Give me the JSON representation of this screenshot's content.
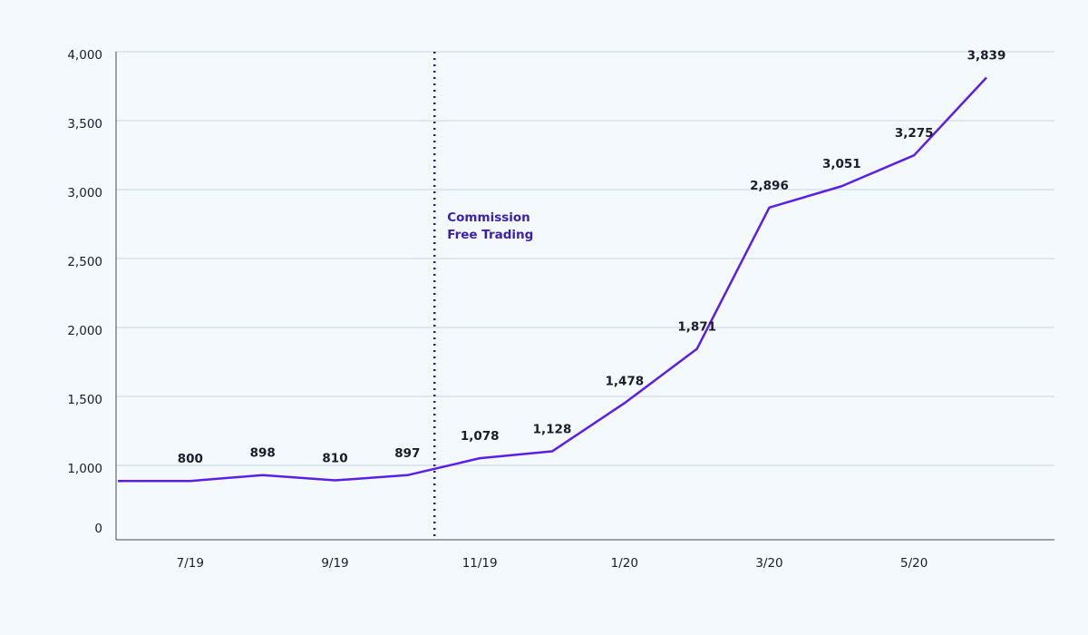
{
  "chart_data": {
    "type": "line",
    "categories": [
      null,
      "7/19",
      null,
      "9/19",
      null,
      "11/19",
      null,
      "1/20",
      null,
      "3/20",
      null,
      "5/20",
      null
    ],
    "values": [
      800,
      800,
      898,
      810,
      897,
      1078,
      1128,
      1478,
      1871,
      2896,
      3051,
      3275,
      3839
    ],
    "value_labels": [
      null,
      "800",
      "898",
      "810",
      "897",
      "1,078",
      "1,128",
      "1,478",
      "1,871",
      "2,896",
      "3,051",
      "3,275",
      "3,839"
    ],
    "color": "#5a1fe8",
    "ylim": [
      0,
      4000
    ],
    "y_break": 1000,
    "yticks": [
      0,
      {
        "value": 1000,
        "label": "1,000"
      },
      {
        "value": 1500,
        "label": "1,500"
      },
      {
        "value": 2000,
        "label": "2,000"
      },
      {
        "value": 2500,
        "label": "2,500"
      },
      {
        "value": 3000,
        "label": "3,000"
      },
      {
        "value": 3500,
        "label": "3,500"
      },
      {
        "value": 4000,
        "label": "4,000"
      }
    ],
    "grid": true,
    "annotation": [
      "Commission",
      "Free Trading"
    ]
  }
}
